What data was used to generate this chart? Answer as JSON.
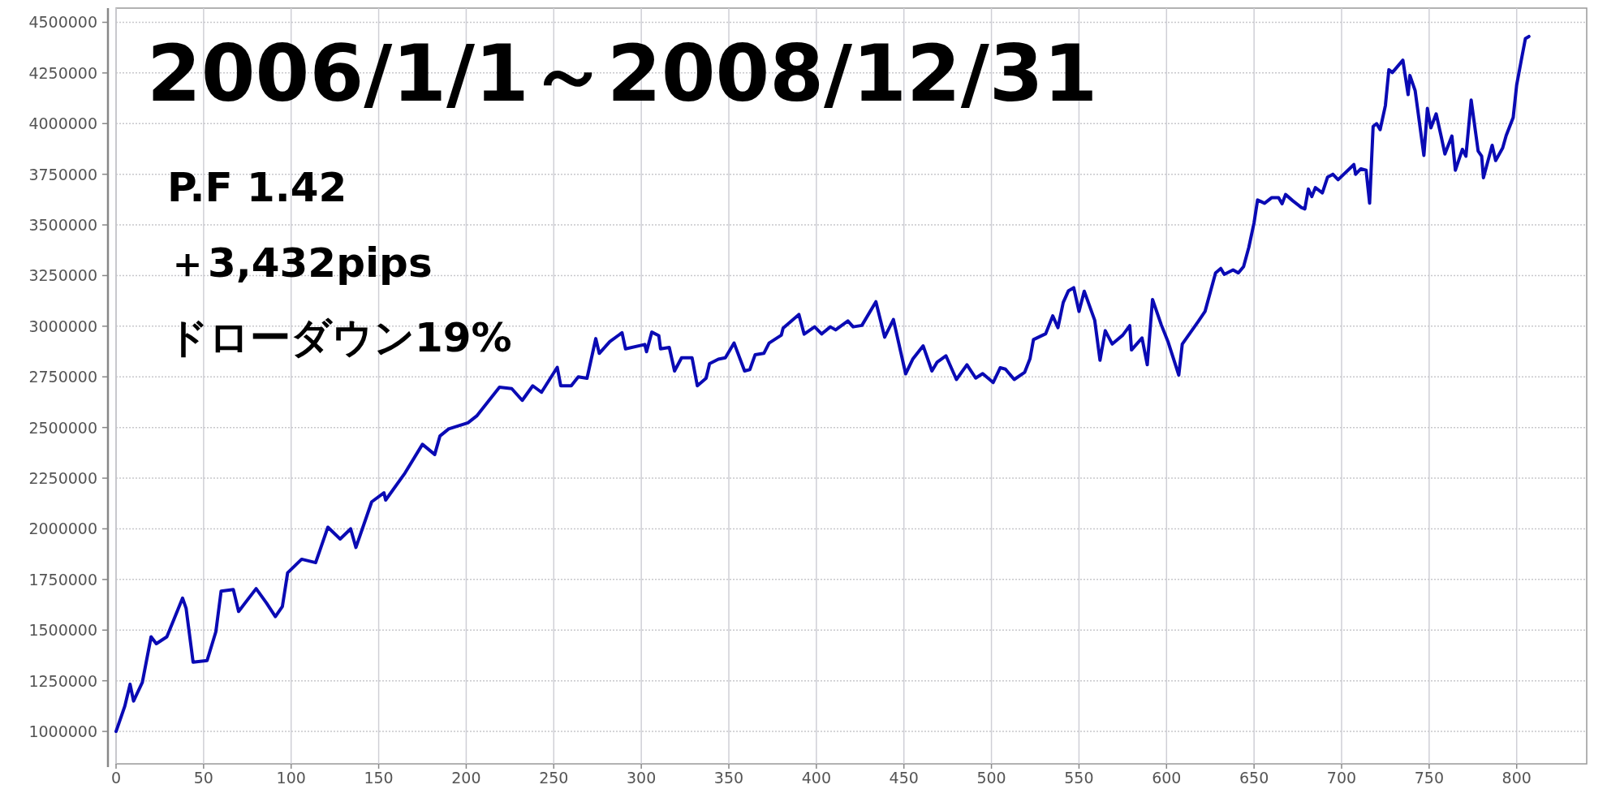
{
  "chart_data": {
    "type": "line",
    "title": "2006/1/1～2008/12/31",
    "annotations": [
      "P.F 1.42",
      "＋3,432pips",
      "ドローダウン19%"
    ],
    "x": [
      0,
      5,
      8,
      10,
      15,
      20,
      23,
      29,
      38,
      40,
      44,
      52,
      57,
      60,
      67,
      70,
      80,
      86,
      91,
      95,
      98,
      106,
      114,
      121,
      128,
      134,
      137,
      146,
      153,
      154,
      165,
      175,
      182,
      185,
      190,
      201,
      206,
      219,
      226,
      232,
      238,
      243,
      252,
      254,
      260,
      264,
      269,
      274,
      276,
      282,
      289,
      291,
      302,
      303,
      306,
      310,
      311,
      316,
      319,
      323,
      329,
      332,
      337,
      339,
      344,
      348,
      353,
      359,
      362,
      365,
      370,
      373,
      380,
      381,
      390,
      393,
      399,
      403,
      408,
      411,
      418,
      421,
      426,
      434,
      439,
      444,
      451,
      455,
      461,
      466,
      469,
      474,
      480,
      486,
      491,
      495,
      501,
      505,
      508,
      513,
      519,
      522,
      524,
      531,
      535,
      538,
      541,
      544,
      547,
      550,
      553,
      559,
      562,
      565,
      569,
      575,
      579,
      580,
      586,
      589,
      592,
      597,
      601,
      607,
      609,
      618,
      622,
      628,
      631,
      633,
      638,
      641,
      644,
      647,
      650,
      652,
      656,
      660,
      664,
      666,
      668,
      672,
      677,
      679,
      681,
      683,
      685,
      689,
      692,
      695,
      698,
      707,
      708,
      711,
      714,
      716,
      718,
      720,
      722,
      725,
      727,
      729,
      735,
      738,
      739,
      742,
      747,
      749,
      751,
      754,
      757,
      759,
      763,
      765,
      769,
      771,
      774,
      778,
      780,
      781,
      786,
      788,
      792,
      794,
      798,
      800,
      803,
      805,
      807
    ],
    "series": [
      {
        "color": "#0a0ab4",
        "values": [
          1000000,
          1125000,
          1233000,
          1150000,
          1242000,
          1467000,
          1433000,
          1467000,
          1658000,
          1608000,
          1342000,
          1350000,
          1492000,
          1692000,
          1700000,
          1592000,
          1705000,
          1633000,
          1567000,
          1617000,
          1783000,
          1850000,
          1833000,
          2008000,
          1950000,
          2000000,
          1908000,
          2133000,
          2178000,
          2142000,
          2275000,
          2417000,
          2367000,
          2458000,
          2493000,
          2523000,
          2557000,
          2699000,
          2692000,
          2634000,
          2706000,
          2674000,
          2797000,
          2706000,
          2706000,
          2750000,
          2743000,
          2939000,
          2866000,
          2924000,
          2968000,
          2888000,
          2910000,
          2874000,
          2971000,
          2953000,
          2888000,
          2895000,
          2779000,
          2844000,
          2844000,
          2706000,
          2743000,
          2815000,
          2837000,
          2844000,
          2917000,
          2779000,
          2786000,
          2859000,
          2866000,
          2917000,
          2956000,
          2990000,
          3058000,
          2961000,
          2997000,
          2962000,
          2997000,
          2982000,
          3026000,
          2997000,
          3004000,
          3121000,
          2946000,
          3033000,
          2765000,
          2837000,
          2903000,
          2779000,
          2823000,
          2854000,
          2737000,
          2810000,
          2744000,
          2766000,
          2722000,
          2795000,
          2788000,
          2737000,
          2773000,
          2839000,
          2934000,
          2963000,
          3051000,
          2993000,
          3117000,
          3175000,
          3190000,
          3073000,
          3173000,
          3029000,
          2832000,
          2978000,
          2912000,
          2956000,
          3003000,
          2883000,
          2942000,
          2810000,
          3132000,
          3007000,
          2920000,
          2759000,
          2912000,
          3022000,
          3073000,
          3263000,
          3285000,
          3256000,
          3278000,
          3263000,
          3294000,
          3389000,
          3511000,
          3623000,
          3607000,
          3634000,
          3634000,
          3604000,
          3650000,
          3620000,
          3586000,
          3579000,
          3677000,
          3640000,
          3684000,
          3658000,
          3736000,
          3750000,
          3723000,
          3798000,
          3750000,
          3777000,
          3770000,
          3607000,
          3986000,
          4000000,
          3970000,
          4089000,
          4266000,
          4252000,
          4313000,
          4143000,
          4238000,
          4163000,
          3843000,
          4075000,
          3979000,
          4048000,
          3932000,
          3850000,
          3939000,
          3770000,
          3873000,
          3839000,
          4116000,
          3864000,
          3839000,
          3733000,
          3893000,
          3818000,
          3880000,
          3941000,
          4030000,
          4191000,
          4330000,
          4420000,
          4430000
        ]
      }
    ],
    "xlim": [
      0,
      840
    ],
    "ylim": [
      840000,
      4570000
    ],
    "xticks": [
      0,
      50,
      100,
      150,
      200,
      250,
      300,
      350,
      400,
      450,
      500,
      550,
      600,
      650,
      700,
      750,
      800
    ],
    "yticks": [
      1000000,
      1250000,
      1500000,
      1750000,
      2000000,
      2250000,
      2500000,
      2750000,
      3000000,
      3250000,
      3500000,
      3750000,
      4000000,
      4250000,
      4500000
    ],
    "grid": true
  }
}
